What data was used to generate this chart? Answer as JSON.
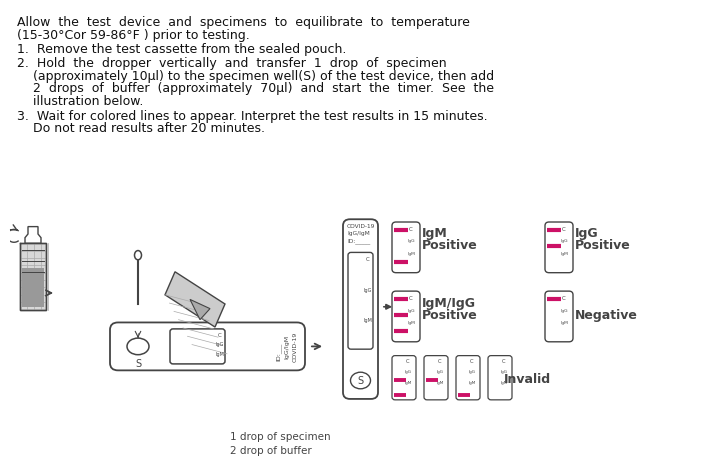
{
  "bg_color": "#ffffff",
  "text_color": "#111111",
  "line_color": "#cc1166",
  "outline_color": "#444444",
  "para0_line1": "Allow  the  test  device  and  specimens  to  equilibrate  to  temperature",
  "para0_line2": "(15-30°Cor 59-86°F ) prior to testing.",
  "step1": "1.  Remove the test cassette from the sealed pouch.",
  "step2_line1": "2.  Hold  the  dropper  vertically  and  transfer  1  drop  of  specimen",
  "step2_line2": "    (approximately 10μl) to the specimen well(S) of the test device, then add",
  "step2_line3": "    2  drops  of  buffer  (approximately  70μl)  and  start  the  timer.  See  the",
  "step2_line4": "    illustration below.",
  "step3_line1": "3.  Wait for colored lines to appear. Interpret the test results in 15 minutes.",
  "step3_line2": "    Do not read results after 20 minutes.",
  "label_1drop": "1 drop of specimen",
  "label_2drop": "2 drop of buffer",
  "covid_label1": "COVID-19",
  "covid_label2": "IgG/IgM",
  "covid_label3": "ID:",
  "label_C": "C",
  "label_IgG": "IgG",
  "label_IgM": "IgM",
  "label_S": "S",
  "result_IgM": "IgM",
  "result_IgG": "IgG",
  "result_IgMIgG": "IgM/IgG",
  "result_Positive": "Positive",
  "result_Negative": "Negative",
  "result_Invalid": "Invalid",
  "iy": 218,
  "illu_scale": 1.0
}
